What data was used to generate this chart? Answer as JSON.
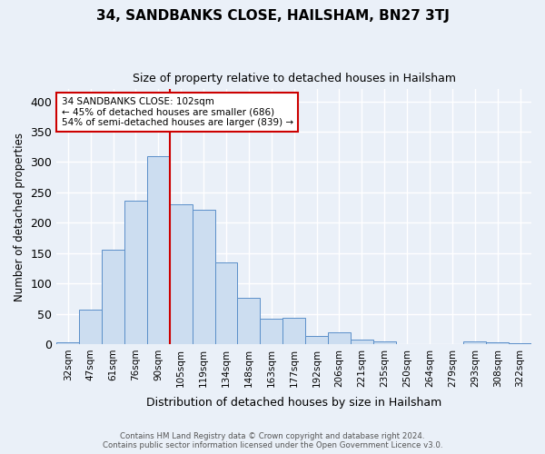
{
  "title": "34, SANDBANKS CLOSE, HAILSHAM, BN27 3TJ",
  "subtitle": "Size of property relative to detached houses in Hailsham",
  "xlabel": "Distribution of detached houses by size in Hailsham",
  "ylabel": "Number of detached properties",
  "categories": [
    "32sqm",
    "47sqm",
    "61sqm",
    "76sqm",
    "90sqm",
    "105sqm",
    "119sqm",
    "134sqm",
    "148sqm",
    "163sqm",
    "177sqm",
    "192sqm",
    "206sqm",
    "221sqm",
    "235sqm",
    "250sqm",
    "264sqm",
    "279sqm",
    "293sqm",
    "308sqm",
    "322sqm"
  ],
  "values": [
    3,
    57,
    156,
    236,
    309,
    230,
    222,
    135,
    76,
    42,
    43,
    13,
    19,
    7,
    4,
    0,
    0,
    0,
    5,
    3,
    2
  ],
  "bar_color": "#ccddf0",
  "bar_edge_color": "#5b8fc9",
  "bg_color": "#eaf0f8",
  "grid_color": "#ffffff",
  "vline_x": 4.5,
  "vline_color": "#cc0000",
  "annotation_text": "34 SANDBANKS CLOSE: 102sqm\n← 45% of detached houses are smaller (686)\n54% of semi-detached houses are larger (839) →",
  "annotation_box_color": "#ffffff",
  "annotation_box_edge": "#cc0000",
  "ylim": [
    0,
    420
  ],
  "yticks": [
    0,
    50,
    100,
    150,
    200,
    250,
    300,
    350,
    400
  ],
  "footer_line1": "Contains HM Land Registry data © Crown copyright and database right 2024.",
  "footer_line2": "Contains public sector information licensed under the Open Government Licence v3.0."
}
